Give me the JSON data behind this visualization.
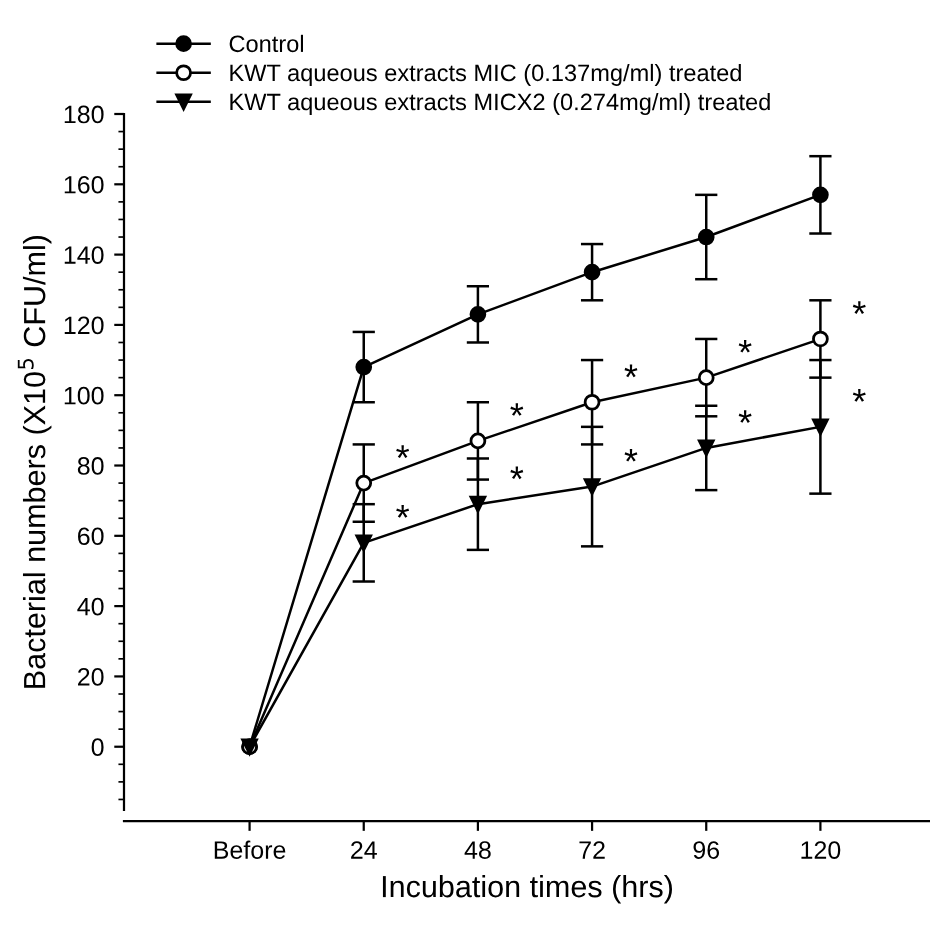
{
  "chart_data": {
    "type": "line",
    "xlabel": "Incubation times (hrs)",
    "ylabel": "Bacterial numbers (X10$^{5}$ CFU/ml)",
    "categories": [
      "Before",
      "24",
      "48",
      "72",
      "96",
      "120"
    ],
    "ylim": [
      -18,
      180
    ],
    "yticks": [
      0,
      20,
      40,
      60,
      80,
      100,
      120,
      140,
      160,
      180
    ],
    "grid": false,
    "legend": "top left",
    "line_style": "solid",
    "series": [
      {
        "name": "Control",
        "color": "#000000",
        "marker": "circle",
        "values": [
          0,
          108,
          123,
          135,
          145,
          157
        ],
        "errors": [
          null,
          10,
          8,
          8,
          12,
          11
        ]
      },
      {
        "name": "KWT aqueous extracts MIC (0.137mg/ml) treated",
        "color": "#000000",
        "marker": "circle",
        "values": [
          0,
          75,
          87,
          98,
          105,
          116
        ],
        "errors": [
          null,
          11,
          11,
          12,
          11,
          11
        ]
      },
      {
        "name": "KWT aqueous extracts MICX2 (0.274mg/ml) treated",
        "color": "#000000",
        "marker": "triangle",
        "values": [
          0,
          58,
          69,
          74,
          85,
          91
        ],
        "errors": [
          null,
          11,
          13,
          17,
          12,
          19
        ]
      }
    ],
    "annotations": [
      {
        "text": "*",
        "x": "24",
        "y": 75
      },
      {
        "text": "*",
        "x": "48",
        "y": 87
      },
      {
        "text": "*",
        "x": "72",
        "y": 98
      },
      {
        "text": "*",
        "x": "96",
        "y": 105
      },
      {
        "text": "*",
        "x": "120",
        "y": 116
      },
      {
        "text": "*",
        "x": "24",
        "y": 58
      },
      {
        "text": "*",
        "x": "48",
        "y": 69
      },
      {
        "text": "*",
        "x": "72",
        "y": 74
      },
      {
        "text": "*",
        "x": "96",
        "y": 85
      },
      {
        "text": "*",
        "x": "120",
        "y": 91
      }
    ]
  }
}
